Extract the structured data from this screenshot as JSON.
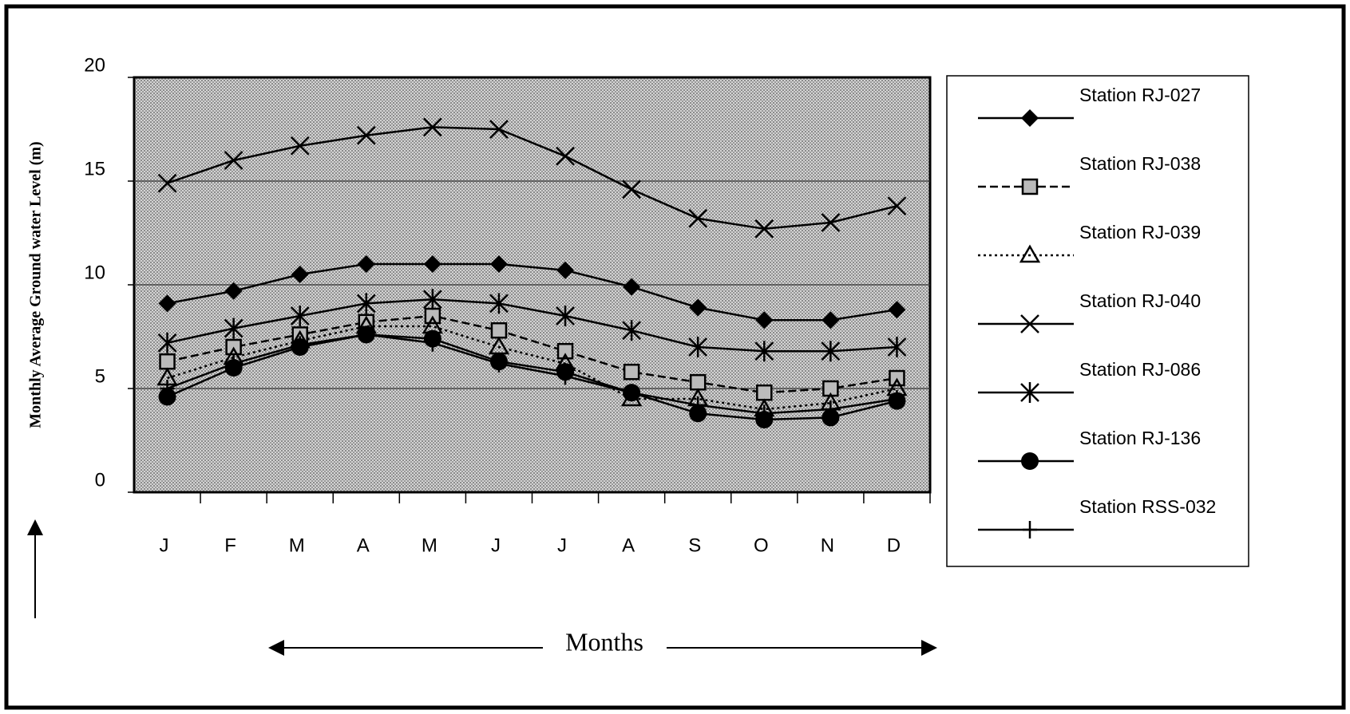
{
  "chart_data": {
    "type": "line",
    "y_label": "Monthly Average Ground water Level (m)",
    "x_label": "Months",
    "categories": [
      "J",
      "F",
      "M",
      "A",
      "M",
      "J",
      "J",
      "A",
      "S",
      "O",
      "N",
      "D"
    ],
    "ylim": [
      0,
      20
    ],
    "yticks": [
      0,
      5,
      10,
      15,
      20
    ],
    "grid": true,
    "legend": "right",
    "series": [
      {
        "name": "Station RJ-027",
        "color": "#000000",
        "marker": "diamond",
        "line": "solid",
        "values": [
          9.1,
          9.7,
          10.5,
          11,
          11,
          11,
          10.7,
          9.9,
          8.9,
          8.3,
          8.3,
          8.8
        ]
      },
      {
        "name": "Station RJ-038",
        "color": "#000000",
        "marker": "square",
        "line": "dashed",
        "values": [
          6.3,
          7.0,
          7.6,
          8.2,
          8.5,
          7.8,
          6.8,
          5.8,
          5.3,
          4.8,
          5.0,
          5.5
        ]
      },
      {
        "name": "Station RJ-039",
        "color": "#000000",
        "marker": "triangle",
        "line": "dotted",
        "values": [
          5.5,
          6.5,
          7.3,
          8.0,
          8.0,
          7.0,
          6.2,
          4.5,
          4.5,
          4.0,
          4.3,
          5.0
        ]
      },
      {
        "name": "Station RJ-040",
        "color": "#000000",
        "marker": "x",
        "line": "solid",
        "values": [
          14.9,
          16.0,
          16.7,
          17.2,
          17.6,
          17.5,
          16.2,
          14.6,
          13.2,
          12.7,
          13.0,
          13.8
        ]
      },
      {
        "name": "Station RJ-086",
        "color": "#000000",
        "marker": "asterisk",
        "line": "solid",
        "values": [
          7.2,
          7.9,
          8.5,
          9.1,
          9.3,
          9.1,
          8.5,
          7.8,
          7.0,
          6.8,
          6.8,
          7.0
        ]
      },
      {
        "name": "Station RJ-136",
        "color": "#000000",
        "marker": "circle",
        "line": "solid",
        "values": [
          4.6,
          6.0,
          7.0,
          7.6,
          7.4,
          6.3,
          5.8,
          4.8,
          3.8,
          3.5,
          3.6,
          4.4
        ]
      },
      {
        "name": "Station RSS-032",
        "color": "#000000",
        "marker": "plus",
        "line": "solid",
        "values": [
          5.0,
          6.2,
          7.1,
          7.6,
          7.2,
          6.2,
          5.6,
          4.8,
          4.2,
          3.8,
          4.0,
          4.5
        ]
      }
    ]
  }
}
